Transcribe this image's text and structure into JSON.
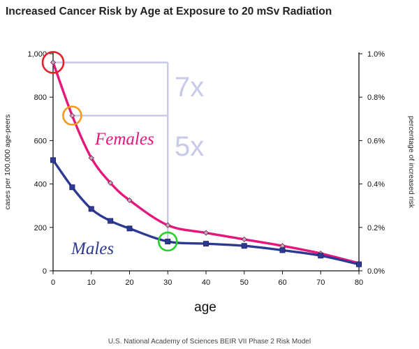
{
  "chart_data": {
    "type": "line",
    "title": "Increased Cancer Risk by Age at Exposure to  20 mSv  Radiation",
    "xlabel": "age",
    "ylabel_left": "cases per 100,000 age-peers",
    "ylabel_right": "percentage of increased risk",
    "source": "U.S. National Academy of Sciences BEIR VII Phase 2 Risk Model",
    "xlim": [
      0,
      80
    ],
    "ylim": [
      0,
      1000
    ],
    "ylim_right": [
      0,
      1.0
    ],
    "x_ticks": [
      "0",
      "10",
      "20",
      "30",
      "40",
      "50",
      "60",
      "70",
      "80"
    ],
    "y_ticks_left": [
      "0",
      "200",
      "400",
      "600",
      "800",
      "1,000"
    ],
    "y_ticks_right": [
      "0.0%",
      "0.2%",
      "0.4%",
      "0.6%",
      "0.8%",
      "1.0%"
    ],
    "series": [
      {
        "name": "Females",
        "color": "#e6177a",
        "marker": "diamond",
        "x": [
          0,
          5,
          10,
          15,
          20,
          30,
          40,
          50,
          60,
          70,
          80
        ],
        "y": [
          960,
          715,
          520,
          405,
          325,
          210,
          175,
          145,
          115,
          80,
          35
        ]
      },
      {
        "name": "Males",
        "color": "#2e3a92",
        "marker": "square",
        "x": [
          0,
          5,
          10,
          15,
          20,
          30,
          40,
          50,
          60,
          70,
          80
        ],
        "y": [
          510,
          385,
          285,
          230,
          195,
          135,
          125,
          115,
          95,
          70,
          30
        ]
      }
    ],
    "annotations": [
      {
        "text": "7x",
        "color": "#c9c9e8"
      },
      {
        "text": "5x",
        "color": "#c9c9e8"
      }
    ],
    "highlights": [
      {
        "x": 0,
        "y": 960,
        "color": "#e8202a"
      },
      {
        "x": 5,
        "y": 715,
        "color": "#f59a1b"
      },
      {
        "x": 30,
        "y": 135,
        "color": "#27d02a"
      }
    ],
    "reference_color": "#c9c9e8",
    "grid": false
  }
}
